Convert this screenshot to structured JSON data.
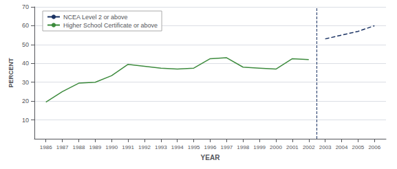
{
  "chart_data": {
    "type": "line",
    "xlabel": "YEAR",
    "ylabel": "PERCENT",
    "series": [
      {
        "name": "Higher School Certificate or above",
        "color": "#3d8b3d",
        "line_style": "solid",
        "x": [
          1986,
          1987,
          1988,
          1989,
          1990,
          1991,
          1992,
          1993,
          1994,
          1995,
          1996,
          1997,
          1998,
          1999,
          2000,
          2001,
          2002
        ],
        "values": [
          19.5,
          25.0,
          29.5,
          30.0,
          33.5,
          39.5,
          38.5,
          37.5,
          37.0,
          37.5,
          42.5,
          43.0,
          38.0,
          37.5,
          37.0,
          42.5,
          42.0
        ]
      },
      {
        "name": "NCEA Level 2 or above",
        "color": "#1a3263",
        "line_style": "dashed",
        "x": [
          2003,
          2005,
          2006
        ],
        "values": [
          53.0,
          57.0,
          60.0
        ]
      }
    ],
    "legend_order": [
      "NCEA Level 2 or above",
      "Higher School Certificate or above"
    ],
    "vlines": [
      {
        "x": 2002.5,
        "color": "#1a3263",
        "line_style": "dashed"
      }
    ],
    "xlim": [
      1985.3,
      2006.7
    ],
    "xticks": [
      1986,
      1987,
      1988,
      1989,
      1990,
      1991,
      1992,
      1993,
      1994,
      1995,
      1996,
      1997,
      1998,
      1999,
      2000,
      2001,
      2002,
      2003,
      2004,
      2005,
      2006
    ],
    "ylim": [
      0,
      70
    ],
    "yticks": [
      10,
      20,
      30,
      40,
      50,
      60,
      70
    ],
    "grid": true,
    "legend": "upper left"
  }
}
